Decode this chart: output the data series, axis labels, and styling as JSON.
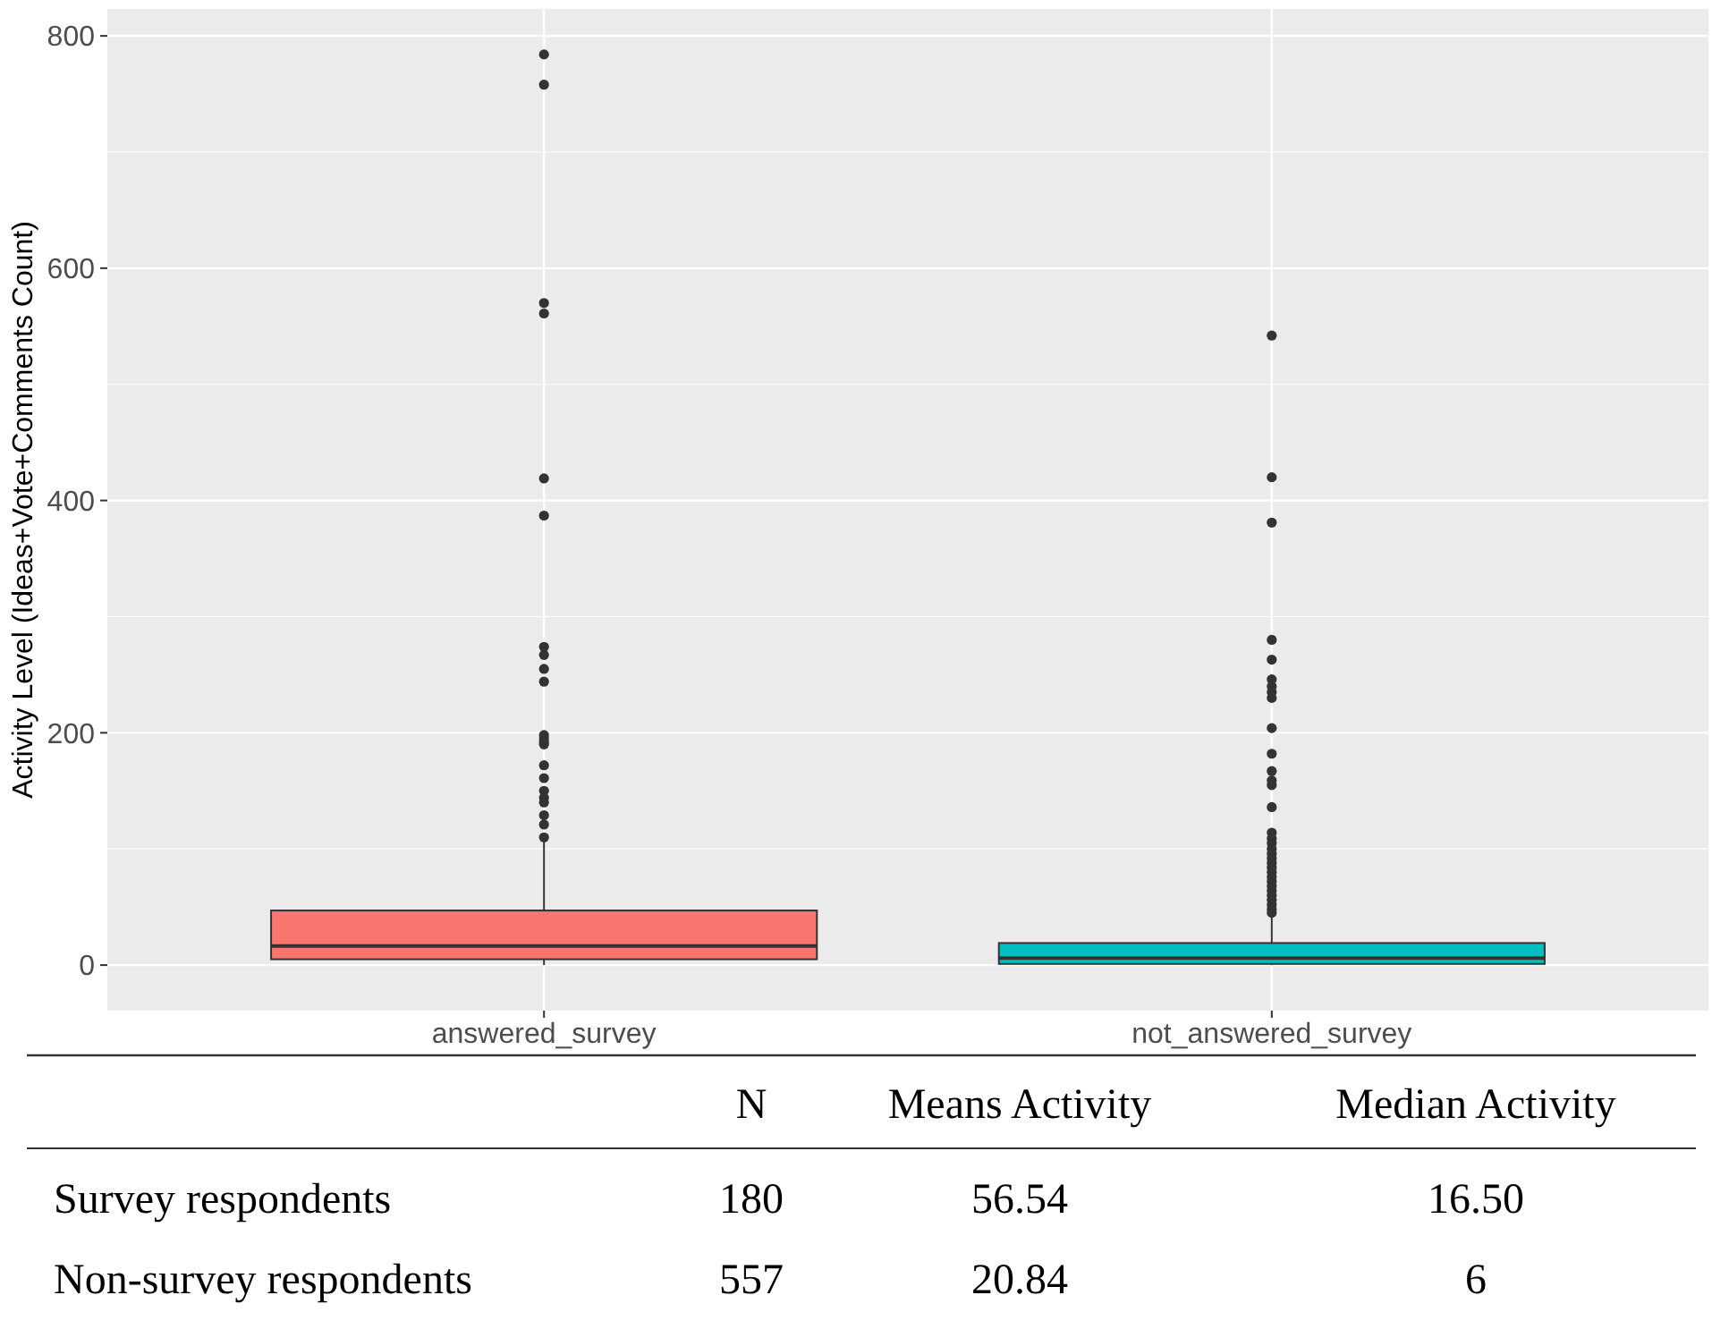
{
  "chart_data": {
    "type": "box",
    "ylabel": "Activity Level (Ideas+Vote+Comments Count)",
    "categories": [
      "answered_survey",
      "not_answered_survey"
    ],
    "colors": [
      "#f8766d",
      "#00bfc4"
    ],
    "boxes": [
      {
        "low": 0,
        "q1": 5,
        "median": 16.5,
        "q3": 47,
        "high": 107,
        "outliers": [
          784,
          758,
          570,
          561,
          419,
          387,
          274,
          267,
          255,
          244,
          198,
          195,
          192,
          190,
          172,
          161,
          150,
          144,
          140,
          129,
          121,
          110
        ]
      },
      {
        "low": 0,
        "q1": 1,
        "median": 6,
        "q3": 19,
        "high": 43,
        "outliers": [
          542,
          420,
          381,
          280,
          263,
          246,
          240,
          235,
          230,
          204,
          182,
          167,
          159,
          155,
          136,
          114,
          109,
          105,
          100,
          96,
          92,
          88,
          84,
          80,
          76,
          72,
          68,
          64,
          60,
          56,
          52,
          48,
          45
        ]
      }
    ],
    "ylim": [
      -39.2,
      823.2
    ],
    "yticks": [
      0,
      200,
      400,
      600,
      800
    ],
    "grid": true,
    "annotations": [
      "N",
      "Means Activity",
      "Median Activity",
      "Survey respondents",
      "180",
      "56.54",
      "16.50",
      "Non-survey respondents",
      "557",
      "20.84",
      "6"
    ]
  }
}
